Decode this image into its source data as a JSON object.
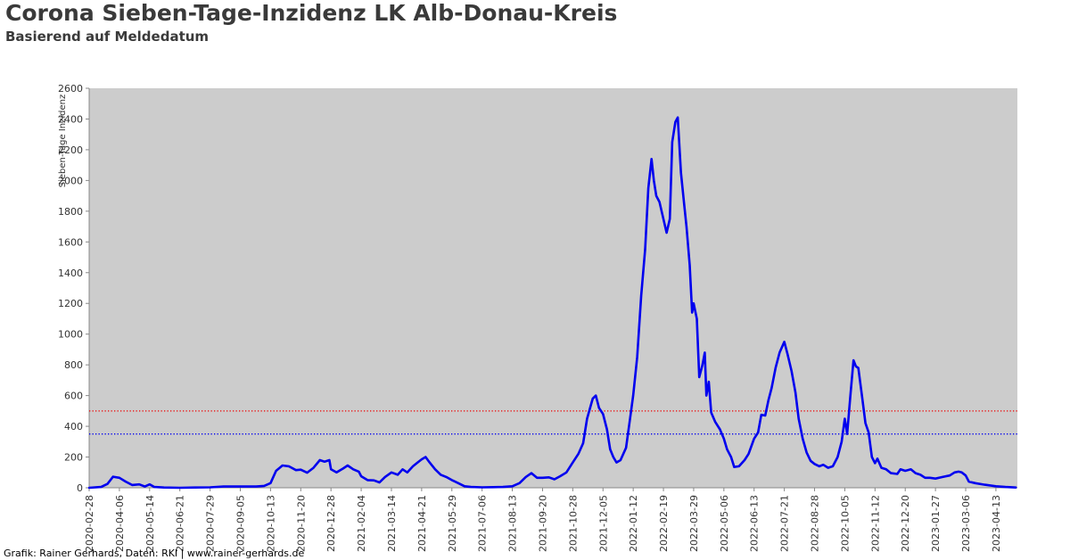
{
  "title": "Corona Sieben-Tage-Inzidenz LK Alb-Donau-Kreis",
  "subtitle": "Basierend auf Meldedatum",
  "footer": "Grafik: Rainer Gerhards, Daten: RKI | www.rainer-gerhards.de",
  "colors": {
    "plot_background": "#cccccc",
    "series_line": "#0000ee",
    "threshold_red": "#ee0000",
    "threshold_blue": "#0000ee"
  },
  "chart_data": {
    "type": "line",
    "title": "Corona Sieben-Tage-Inzidenz LK Alb-Donau-Kreis",
    "subtitle": "Basierend auf Meldedatum",
    "xlabel": "",
    "ylabel": "Sieben-Tage Inzidenz",
    "ylim": [
      0,
      2600
    ],
    "xlim": [
      "2020-02-28",
      "2023-05-10"
    ],
    "yticks": [
      0,
      200,
      400,
      600,
      800,
      1000,
      1200,
      1400,
      1600,
      1800,
      2000,
      2200,
      2400,
      2600
    ],
    "xticks": [
      "2020-02-28",
      "2020-04-06",
      "2020-05-14",
      "2020-06-21",
      "2020-07-29",
      "2020-09-05",
      "2020-10-13",
      "2020-11-20",
      "2020-12-28",
      "2021-02-04",
      "2021-03-14",
      "2021-04-21",
      "2021-05-29",
      "2021-07-06",
      "2021-08-13",
      "2021-09-20",
      "2021-10-28",
      "2021-12-05",
      "2022-01-12",
      "2022-02-19",
      "2022-03-29",
      "2022-05-06",
      "2022-06-13",
      "2022-07-21",
      "2022-08-28",
      "2022-10-05",
      "2022-11-12",
      "2022-12-20",
      "2023-01-27",
      "2023-03-06",
      "2023-04-13"
    ],
    "grid": false,
    "reference_lines": [
      {
        "y": 500,
        "color": "#ee0000",
        "style": "dotted"
      },
      {
        "y": 350,
        "color": "#0000ee",
        "style": "dotted"
      }
    ],
    "series": [
      {
        "color": "#0000ee",
        "points": [
          [
            "2020-02-28",
            0
          ],
          [
            "2020-03-14",
            5
          ],
          [
            "2020-03-22",
            25
          ],
          [
            "2020-03-29",
            72
          ],
          [
            "2020-04-06",
            65
          ],
          [
            "2020-04-14",
            40
          ],
          [
            "2020-04-22",
            18
          ],
          [
            "2020-05-01",
            22
          ],
          [
            "2020-05-08",
            8
          ],
          [
            "2020-05-14",
            22
          ],
          [
            "2020-05-20",
            5
          ],
          [
            "2020-06-01",
            2
          ],
          [
            "2020-06-21",
            0
          ],
          [
            "2020-07-10",
            2
          ],
          [
            "2020-07-29",
            3
          ],
          [
            "2020-08-15",
            8
          ],
          [
            "2020-09-05",
            8
          ],
          [
            "2020-09-25",
            8
          ],
          [
            "2020-10-05",
            12
          ],
          [
            "2020-10-13",
            30
          ],
          [
            "2020-10-20",
            110
          ],
          [
            "2020-10-28",
            145
          ],
          [
            "2020-11-05",
            140
          ],
          [
            "2020-11-14",
            115
          ],
          [
            "2020-11-20",
            118
          ],
          [
            "2020-11-28",
            98
          ],
          [
            "2020-12-06",
            130
          ],
          [
            "2020-12-14",
            180
          ],
          [
            "2020-12-20",
            170
          ],
          [
            "2020-12-26",
            180
          ],
          [
            "2020-12-28",
            120
          ],
          [
            "2021-01-04",
            100
          ],
          [
            "2021-01-12",
            125
          ],
          [
            "2021-01-18",
            145
          ],
          [
            "2021-01-25",
            120
          ],
          [
            "2021-02-01",
            105
          ],
          [
            "2021-02-04",
            75
          ],
          [
            "2021-02-12",
            50
          ],
          [
            "2021-02-20",
            48
          ],
          [
            "2021-02-27",
            35
          ],
          [
            "2021-03-06",
            70
          ],
          [
            "2021-03-14",
            100
          ],
          [
            "2021-03-22",
            85
          ],
          [
            "2021-03-28",
            120
          ],
          [
            "2021-04-03",
            100
          ],
          [
            "2021-04-10",
            140
          ],
          [
            "2021-04-16",
            165
          ],
          [
            "2021-04-21",
            185
          ],
          [
            "2021-04-26",
            200
          ],
          [
            "2021-05-01",
            165
          ],
          [
            "2021-05-08",
            120
          ],
          [
            "2021-05-15",
            85
          ],
          [
            "2021-05-22",
            70
          ],
          [
            "2021-05-29",
            50
          ],
          [
            "2021-06-06",
            30
          ],
          [
            "2021-06-14",
            10
          ],
          [
            "2021-06-22",
            5
          ],
          [
            "2021-07-06",
            3
          ],
          [
            "2021-07-20",
            4
          ],
          [
            "2021-08-01",
            5
          ],
          [
            "2021-08-13",
            10
          ],
          [
            "2021-08-22",
            30
          ],
          [
            "2021-08-30",
            70
          ],
          [
            "2021-09-06",
            95
          ],
          [
            "2021-09-13",
            65
          ],
          [
            "2021-09-20",
            65
          ],
          [
            "2021-09-28",
            68
          ],
          [
            "2021-10-05",
            55
          ],
          [
            "2021-10-12",
            75
          ],
          [
            "2021-10-20",
            100
          ],
          [
            "2021-10-28",
            165
          ],
          [
            "2021-11-04",
            220
          ],
          [
            "2021-11-10",
            290
          ],
          [
            "2021-11-15",
            450
          ],
          [
            "2021-11-22",
            580
          ],
          [
            "2021-11-26",
            600
          ],
          [
            "2021-11-30",
            520
          ],
          [
            "2021-12-05",
            480
          ],
          [
            "2021-12-10",
            380
          ],
          [
            "2021-12-14",
            250
          ],
          [
            "2021-12-18",
            200
          ],
          [
            "2021-12-22",
            165
          ],
          [
            "2021-12-27",
            180
          ],
          [
            "2022-01-03",
            260
          ],
          [
            "2022-01-08",
            450
          ],
          [
            "2022-01-12",
            600
          ],
          [
            "2022-01-17",
            850
          ],
          [
            "2022-01-22",
            1250
          ],
          [
            "2022-01-27",
            1550
          ],
          [
            "2022-01-31",
            1950
          ],
          [
            "2022-02-04",
            2140
          ],
          [
            "2022-02-07",
            2000
          ],
          [
            "2022-02-10",
            1900
          ],
          [
            "2022-02-14",
            1860
          ],
          [
            "2022-02-19",
            1750
          ],
          [
            "2022-02-23",
            1660
          ],
          [
            "2022-02-27",
            1750
          ],
          [
            "2022-03-02",
            2250
          ],
          [
            "2022-03-06",
            2380
          ],
          [
            "2022-03-09",
            2410
          ],
          [
            "2022-03-13",
            2050
          ],
          [
            "2022-03-17",
            1850
          ],
          [
            "2022-03-20",
            1700
          ],
          [
            "2022-03-24",
            1450
          ],
          [
            "2022-03-27",
            1140
          ],
          [
            "2022-03-29",
            1200
          ],
          [
            "2022-04-02",
            1100
          ],
          [
            "2022-04-05",
            720
          ],
          [
            "2022-04-09",
            800
          ],
          [
            "2022-04-12",
            880
          ],
          [
            "2022-04-14",
            600
          ],
          [
            "2022-04-17",
            690
          ],
          [
            "2022-04-20",
            490
          ],
          [
            "2022-04-25",
            430
          ],
          [
            "2022-05-01",
            380
          ],
          [
            "2022-05-06",
            320
          ],
          [
            "2022-05-10",
            250
          ],
          [
            "2022-05-15",
            200
          ],
          [
            "2022-05-19",
            135
          ],
          [
            "2022-05-25",
            140
          ],
          [
            "2022-06-01",
            180
          ],
          [
            "2022-06-06",
            220
          ],
          [
            "2022-06-13",
            320
          ],
          [
            "2022-06-18",
            360
          ],
          [
            "2022-06-22",
            475
          ],
          [
            "2022-06-27",
            470
          ],
          [
            "2022-07-01",
            570
          ],
          [
            "2022-07-05",
            650
          ],
          [
            "2022-07-10",
            780
          ],
          [
            "2022-07-15",
            880
          ],
          [
            "2022-07-21",
            950
          ],
          [
            "2022-07-25",
            870
          ],
          [
            "2022-07-30",
            760
          ],
          [
            "2022-08-04",
            620
          ],
          [
            "2022-08-08",
            450
          ],
          [
            "2022-08-13",
            320
          ],
          [
            "2022-08-18",
            230
          ],
          [
            "2022-08-23",
            175
          ],
          [
            "2022-08-28",
            155
          ],
          [
            "2022-09-03",
            140
          ],
          [
            "2022-09-08",
            150
          ],
          [
            "2022-09-14",
            130
          ],
          [
            "2022-09-20",
            140
          ],
          [
            "2022-09-26",
            200
          ],
          [
            "2022-10-01",
            300
          ],
          [
            "2022-10-05",
            450
          ],
          [
            "2022-10-08",
            350
          ],
          [
            "2022-10-12",
            600
          ],
          [
            "2022-10-16",
            830
          ],
          [
            "2022-10-19",
            790
          ],
          [
            "2022-10-22",
            780
          ],
          [
            "2022-10-27",
            580
          ],
          [
            "2022-10-31",
            420
          ],
          [
            "2022-11-04",
            360
          ],
          [
            "2022-11-08",
            200
          ],
          [
            "2022-11-12",
            160
          ],
          [
            "2022-11-15",
            190
          ],
          [
            "2022-11-20",
            130
          ],
          [
            "2022-11-26",
            120
          ],
          [
            "2022-12-02",
            95
          ],
          [
            "2022-12-10",
            90
          ],
          [
            "2022-12-14",
            120
          ],
          [
            "2022-12-20",
            110
          ],
          [
            "2022-12-27",
            120
          ],
          [
            "2023-01-02",
            95
          ],
          [
            "2023-01-08",
            85
          ],
          [
            "2023-01-14",
            65
          ],
          [
            "2023-01-20",
            65
          ],
          [
            "2023-01-27",
            60
          ],
          [
            "2023-02-05",
            70
          ],
          [
            "2023-02-14",
            80
          ],
          [
            "2023-02-20",
            100
          ],
          [
            "2023-02-25",
            105
          ],
          [
            "2023-03-01",
            100
          ],
          [
            "2023-03-06",
            80
          ],
          [
            "2023-03-10",
            40
          ],
          [
            "2023-03-18",
            30
          ],
          [
            "2023-03-30",
            20
          ],
          [
            "2023-04-13",
            10
          ],
          [
            "2023-04-25",
            5
          ],
          [
            "2023-05-08",
            2
          ]
        ]
      }
    ]
  }
}
